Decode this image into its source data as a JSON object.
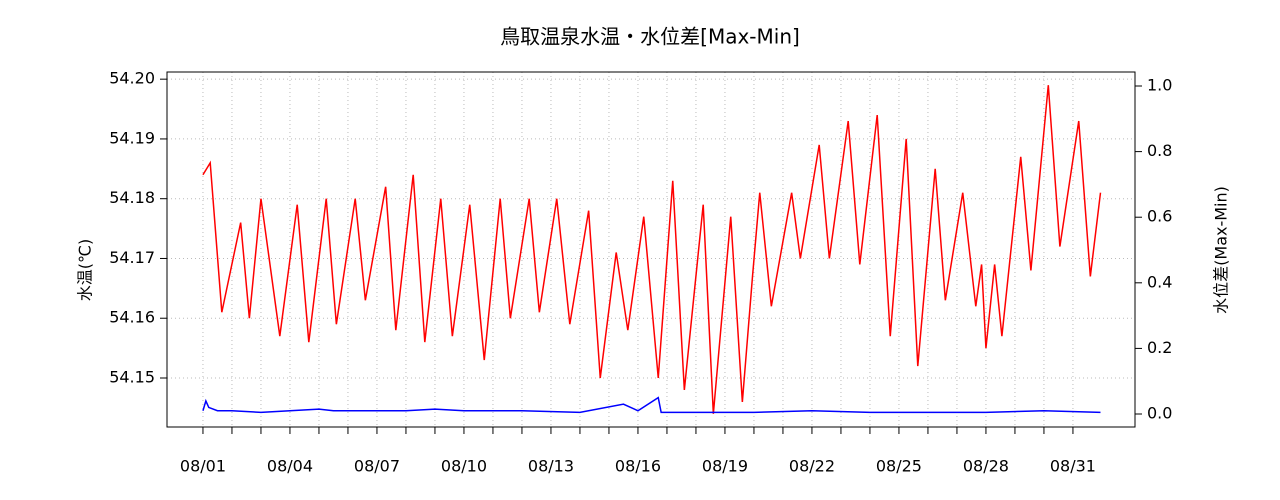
{
  "chart_data": {
    "type": "line",
    "title": "鳥取温泉水温・水位差[Max-Min]",
    "ylabel": "水温(℃)",
    "y2label": "水位差(Max-Min)",
    "xlim": [
      -0.24,
      33.14
    ],
    "xticks": [
      {
        "value": 1,
        "label": "08/01"
      },
      {
        "value": 4,
        "label": "08/04"
      },
      {
        "value": 7,
        "label": "08/07"
      },
      {
        "value": 10,
        "label": "08/10"
      },
      {
        "value": 13,
        "label": "08/13"
      },
      {
        "value": 16,
        "label": "08/16"
      },
      {
        "value": 19,
        "label": "08/19"
      },
      {
        "value": 22,
        "label": "08/22"
      },
      {
        "value": 25,
        "label": "08/25"
      },
      {
        "value": 28,
        "label": "08/28"
      },
      {
        "value": 31,
        "label": "08/31"
      }
    ],
    "x_minor_ticks": [
      2,
      3,
      5,
      6,
      8,
      9,
      11,
      12,
      14,
      15,
      17,
      18,
      20,
      21,
      23,
      24,
      26,
      27,
      29,
      30
    ],
    "ylim": [
      54.1418,
      54.2012
    ],
    "yticks": [
      54.15,
      54.16,
      54.17,
      54.18,
      54.19,
      {
        "value": 54.2,
        "label": "54.20"
      }
    ],
    "y2lim": [
      -0.0396,
      1.0427
    ],
    "y2ticks": [
      {
        "value": 0,
        "label": "0.0"
      },
      0.2,
      0.4,
      0.6,
      0.8,
      {
        "value": 1,
        "label": "1.0"
      }
    ],
    "grid": true,
    "series": [
      {
        "color": "#ff0000",
        "axis": "y",
        "x": [
          1.0,
          1.25,
          1.65,
          2.3,
          2.6,
          3.0,
          3.65,
          4.25,
          4.65,
          5.25,
          5.6,
          6.25,
          6.6,
          7.3,
          7.65,
          8.25,
          8.65,
          9.2,
          9.6,
          10.2,
          10.7,
          11.25,
          11.6,
          12.25,
          12.6,
          13.2,
          13.65,
          14.3,
          14.7,
          15.25,
          15.65,
          16.2,
          16.7,
          17.2,
          17.6,
          18.25,
          18.6,
          19.2,
          19.6,
          19.95,
          20.2,
          20.6,
          21.3,
          21.6,
          22.25,
          22.6,
          23.25,
          23.65,
          24.25,
          24.7,
          25.25,
          25.65,
          26.25,
          26.6,
          27.2,
          27.65,
          27.85,
          28.0,
          28.3,
          28.55,
          29.2,
          29.55,
          30.15,
          30.55,
          31.2,
          31.6,
          31.95
        ],
        "values": [
          54.184,
          54.186,
          54.161,
          54.176,
          54.16,
          54.18,
          54.157,
          54.179,
          54.156,
          54.18,
          54.159,
          54.18,
          54.163,
          54.182,
          54.158,
          54.184,
          54.156,
          54.18,
          54.157,
          54.179,
          54.153,
          54.18,
          54.16,
          54.18,
          54.161,
          54.18,
          54.159,
          54.178,
          54.15,
          54.171,
          54.158,
          54.177,
          54.15,
          54.183,
          54.148,
          54.179,
          54.144,
          54.177,
          54.146,
          54.167,
          54.181,
          54.162,
          54.181,
          54.17,
          54.189,
          54.17,
          54.193,
          54.169,
          54.194,
          54.157,
          54.19,
          54.152,
          54.185,
          54.163,
          54.181,
          54.162,
          54.169,
          54.155,
          54.169,
          54.157,
          54.187,
          54.168,
          54.199,
          54.172,
          54.193,
          54.167,
          54.181
        ]
      },
      {
        "color": "#0000ff",
        "axis": "y2",
        "x": [
          1.0,
          1.1,
          1.2,
          1.5,
          2,
          3,
          4,
          5,
          5.5,
          6,
          8,
          9,
          10,
          12,
          14,
          15.5,
          16,
          16.7,
          16.8,
          18,
          20,
          22,
          24,
          26,
          28,
          30,
          31.95
        ],
        "values": [
          0.01,
          0.04,
          0.02,
          0.01,
          0.01,
          0.005,
          0.01,
          0.015,
          0.01,
          0.01,
          0.01,
          0.015,
          0.01,
          0.01,
          0.005,
          0.03,
          0.01,
          0.05,
          0.005,
          0.005,
          0.005,
          0.01,
          0.005,
          0.005,
          0.005,
          0.01,
          0.005
        ]
      }
    ]
  }
}
